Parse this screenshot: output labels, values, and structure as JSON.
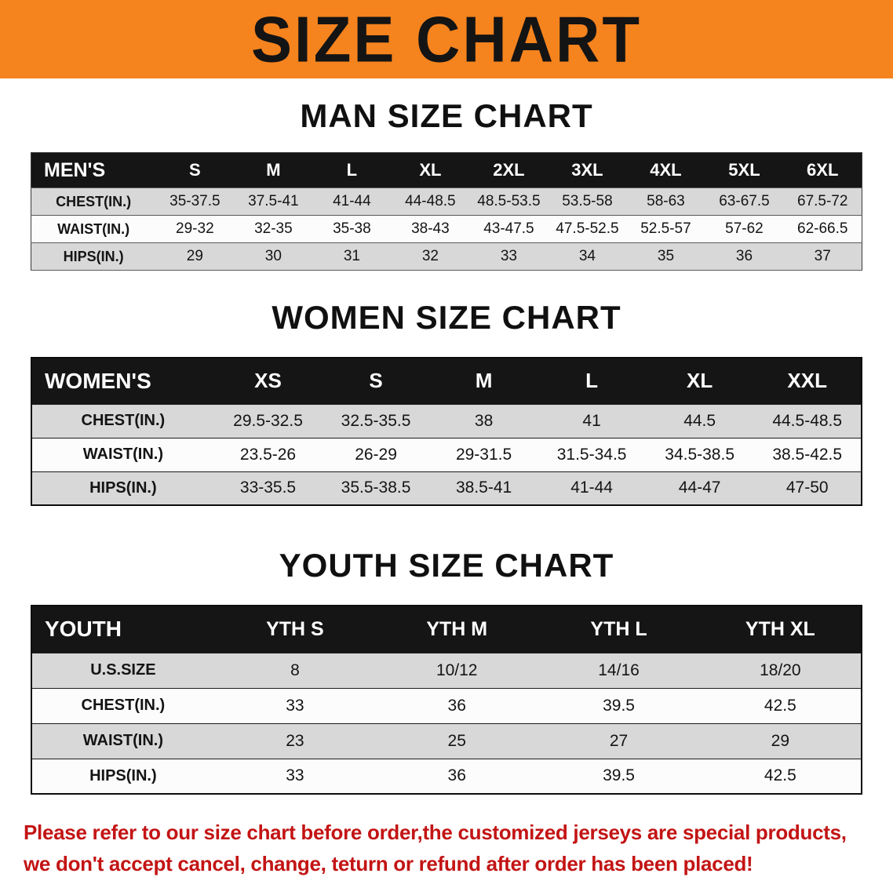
{
  "banner": {
    "title": "SIZE CHART",
    "background": "#F5831E"
  },
  "sections": {
    "men": {
      "heading": "MAN SIZE CHART"
    },
    "women": {
      "heading": "WOMEN SIZE CHART"
    },
    "youth": {
      "heading": "YOUTH SIZE CHART"
    }
  },
  "tables": {
    "men": {
      "header_label": "MEN'S",
      "sizes": [
        "S",
        "M",
        "L",
        "XL",
        "2XL",
        "3XL",
        "4XL",
        "5XL",
        "6XL"
      ],
      "rows": [
        {
          "label": "CHEST(IN.)",
          "values": [
            "35-37.5",
            "37.5-41",
            "41-44",
            "44-48.5",
            "48.5-53.5",
            "53.5-58",
            "58-63",
            "63-67.5",
            "67.5-72"
          ]
        },
        {
          "label": "WAIST(IN.)",
          "values": [
            "29-32",
            "32-35",
            "35-38",
            "38-43",
            "43-47.5",
            "47.5-52.5",
            "52.5-57",
            "57-62",
            "62-66.5"
          ]
        },
        {
          "label": "HIPS(IN.)",
          "values": [
            "29",
            "30",
            "31",
            "32",
            "33",
            "34",
            "35",
            "36",
            "37"
          ]
        }
      ]
    },
    "women": {
      "header_label": "WOMEN'S",
      "sizes": [
        "XS",
        "S",
        "M",
        "L",
        "XL",
        "XXL"
      ],
      "rows": [
        {
          "label": "CHEST(IN.)",
          "values": [
            "29.5-32.5",
            "32.5-35.5",
            "38",
            "41",
            "44.5",
            "44.5-48.5"
          ]
        },
        {
          "label": "WAIST(IN.)",
          "values": [
            "23.5-26",
            "26-29",
            "29-31.5",
            "31.5-34.5",
            "34.5-38.5",
            "38.5-42.5"
          ]
        },
        {
          "label": "HIPS(IN.)",
          "values": [
            "33-35.5",
            "35.5-38.5",
            "38.5-41",
            "41-44",
            "44-47",
            "47-50"
          ]
        }
      ]
    },
    "youth": {
      "header_label": "YOUTH",
      "sizes": [
        "YTH S",
        "YTH M",
        "YTH L",
        "YTH XL"
      ],
      "rows": [
        {
          "label": "U.S.SIZE",
          "values": [
            "8",
            "10/12",
            "14/16",
            "18/20"
          ]
        },
        {
          "label": "CHEST(IN.)",
          "values": [
            "33",
            "36",
            "39.5",
            "42.5"
          ]
        },
        {
          "label": "WAIST(IN.)",
          "values": [
            "23",
            "25",
            "27",
            "29"
          ]
        },
        {
          "label": "HIPS(IN.)",
          "values": [
            "33",
            "36",
            "39.5",
            "42.5"
          ]
        }
      ]
    }
  },
  "disclaimer": {
    "line1": "Please refer to our size chart before order,the customized jerseys are special products,",
    "line2": "we don't accept cancel, change, teturn or refund after order has been placed!",
    "color": "#C31414"
  }
}
